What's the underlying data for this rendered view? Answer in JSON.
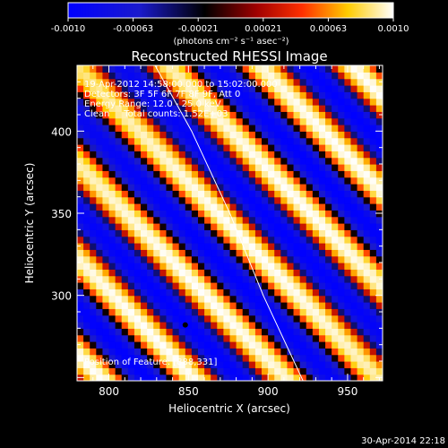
{
  "colorbar": {
    "ticks": [
      "-0.0010",
      "-0.00063",
      "-0.00021",
      "0.00021",
      "0.00063",
      "0.0010"
    ],
    "unit_label": "(photons cm⁻² s⁻¹ asec⁻²)"
  },
  "chart_data": {
    "type": "heatmap",
    "title": "Reconstructed RHESSI Image",
    "xlabel": "Heliocentric X (arcsec)",
    "ylabel": "Heliocentric Y (arcsec)",
    "xlim": [
      780,
      972
    ],
    "ylim": [
      248,
      440
    ],
    "xticks": [
      800,
      850,
      900,
      950
    ],
    "yticks": [
      300,
      350,
      400
    ],
    "clim": [
      -0.001,
      0.001
    ],
    "colormap": "blue-black-red-yellow-white",
    "pattern": {
      "description_type": "diagonal stripes",
      "stripe_period_arcsec": 41,
      "direction_vector": [
        1,
        1
      ],
      "bright_stripe_through": [
        888,
        331
      ]
    },
    "solar_limb": {
      "points": [
        [
          829,
          440
        ],
        [
          852,
          400
        ],
        [
          876,
          350
        ],
        [
          897,
          300
        ],
        [
          922,
          248
        ]
      ]
    },
    "marker_point": [
      848,
      282
    ],
    "annotations": [
      "19-Apr-2012 14:58:00.000 to 15:02:00.000",
      "Detectors: 3F 5F 6F 7F 8F 9F, Att 0",
      "Energy Range: 12.0 - 25.0 keV",
      "Clean     Total counts: 1.52E+03",
      "Position of Feature: [888,331]"
    ],
    "timestamp": "30-Apr-2014 22:18"
  }
}
